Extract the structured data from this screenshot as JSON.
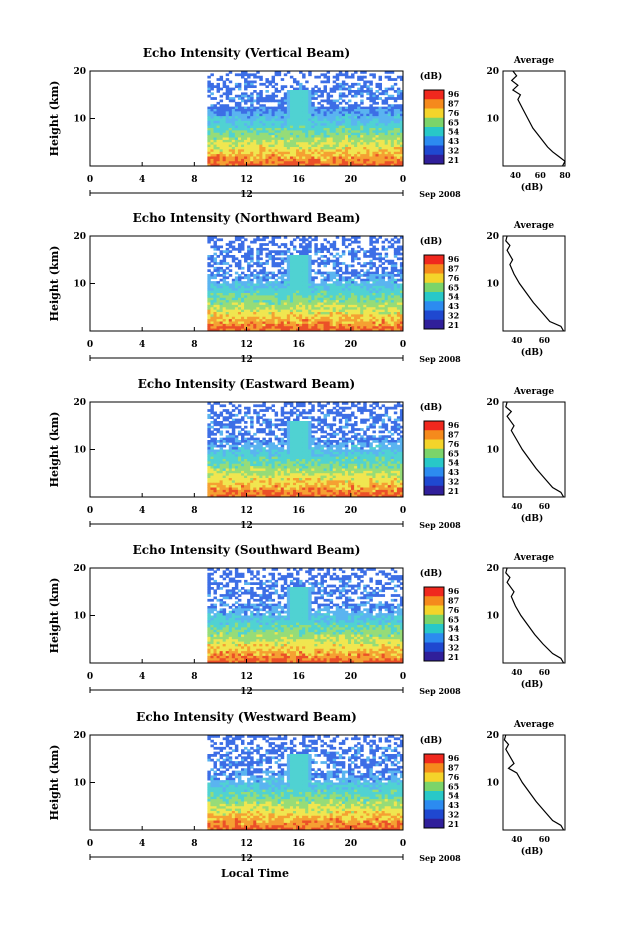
{
  "figure": {
    "x_axis_label": "Local Time",
    "date_label": "Sep 2008",
    "colorbar_label": "(dB)",
    "colorbar_ticks": [
      "96",
      "87",
      "76",
      "65",
      "54",
      "43",
      "32",
      "21"
    ],
    "colorbar_colors": [
      "#f0281e",
      "#f58a1c",
      "#f4d42a",
      "#7bd46a",
      "#28c8c8",
      "#2c8bf0",
      "#1f48d0",
      "#301f9a"
    ],
    "heatmap_colors": {
      "white": "#ffffff",
      "blue": "#3c6ee6",
      "lightblue": "#5ab4f0",
      "cyan": "#50d2d2",
      "green": "#96dc78",
      "yellow": "#f0e650",
      "orange": "#f5a032",
      "red": "#eb5028"
    },
    "avg_title": "Average",
    "avg_xlabel": "(dB)"
  },
  "chart_data": [
    {
      "type": "heatmap",
      "title": "Echo Intensity (Vertical Beam)",
      "ylabel": "Height (km)",
      "xlabel": "Local Time",
      "x_ticks": [
        "0",
        "4",
        "8",
        "12",
        "16",
        "20",
        "0"
      ],
      "x_range": [
        0,
        24
      ],
      "y_ticks": [
        "20",
        "10"
      ],
      "y_range": [
        0,
        20
      ],
      "data_start_hour": 9,
      "colorbar_range_db": [
        21,
        96
      ],
      "average_profile": {
        "x_ticks": [
          "40",
          "60",
          "80"
        ],
        "x_range": [
          30,
          80
        ],
        "y_ticks": [
          "20",
          "10"
        ],
        "points": [
          [
            38,
            20
          ],
          [
            41,
            19
          ],
          [
            37,
            18
          ],
          [
            42,
            17
          ],
          [
            38,
            16
          ],
          [
            44,
            15
          ],
          [
            42,
            14
          ],
          [
            46,
            12
          ],
          [
            50,
            10
          ],
          [
            54,
            8
          ],
          [
            57,
            7
          ],
          [
            60,
            6
          ],
          [
            63,
            5
          ],
          [
            66,
            4
          ],
          [
            70,
            3
          ],
          [
            75,
            2
          ],
          [
            80,
            1
          ],
          [
            78,
            0
          ]
        ]
      }
    },
    {
      "type": "heatmap",
      "title": "Echo Intensity (Northward Beam)",
      "ylabel": "Height (km)",
      "xlabel": "Local Time",
      "x_ticks": [
        "0",
        "4",
        "8",
        "12",
        "16",
        "20",
        "0"
      ],
      "x_range": [
        0,
        24
      ],
      "y_ticks": [
        "20",
        "10"
      ],
      "y_range": [
        0,
        20
      ],
      "data_start_hour": 9,
      "colorbar_range_db": [
        21,
        96
      ],
      "average_profile": {
        "x_ticks": [
          "40",
          "60"
        ],
        "x_range": [
          30,
          75
        ],
        "y_ticks": [
          "20",
          "10"
        ],
        "points": [
          [
            33,
            20
          ],
          [
            32,
            19
          ],
          [
            35,
            18
          ],
          [
            33,
            17
          ],
          [
            37,
            15
          ],
          [
            35,
            14
          ],
          [
            38,
            12
          ],
          [
            42,
            10
          ],
          [
            47,
            8
          ],
          [
            52,
            6
          ],
          [
            58,
            4
          ],
          [
            64,
            2
          ],
          [
            72,
            1
          ],
          [
            74,
            0
          ]
        ]
      }
    },
    {
      "type": "heatmap",
      "title": "Echo Intensity (Eastward Beam)",
      "ylabel": "Height (km)",
      "xlabel": "Local Time",
      "x_ticks": [
        "0",
        "4",
        "8",
        "12",
        "16",
        "20",
        "0"
      ],
      "x_range": [
        0,
        24
      ],
      "y_ticks": [
        "20",
        "10"
      ],
      "y_range": [
        0,
        20
      ],
      "data_start_hour": 9,
      "colorbar_range_db": [
        21,
        96
      ],
      "average_profile": {
        "x_ticks": [
          "40",
          "60"
        ],
        "x_range": [
          30,
          75
        ],
        "y_ticks": [
          "20",
          "10"
        ],
        "points": [
          [
            33,
            20
          ],
          [
            32,
            19
          ],
          [
            36,
            18
          ],
          [
            33,
            17
          ],
          [
            38,
            15
          ],
          [
            36,
            14
          ],
          [
            40,
            12
          ],
          [
            44,
            10
          ],
          [
            49,
            8
          ],
          [
            54,
            6
          ],
          [
            60,
            4
          ],
          [
            66,
            2
          ],
          [
            72,
            1
          ],
          [
            74,
            0
          ]
        ]
      }
    },
    {
      "type": "heatmap",
      "title": "Echo Intensity (Southward Beam)",
      "ylabel": "Height (km)",
      "xlabel": "Local Time",
      "x_ticks": [
        "0",
        "4",
        "8",
        "12",
        "16",
        "20",
        "0"
      ],
      "x_range": [
        0,
        24
      ],
      "y_ticks": [
        "20",
        "10"
      ],
      "y_range": [
        0,
        20
      ],
      "data_start_hour": 9,
      "colorbar_range_db": [
        21,
        96
      ],
      "average_profile": {
        "x_ticks": [
          "40",
          "60"
        ],
        "x_range": [
          30,
          75
        ],
        "y_ticks": [
          "20",
          "10"
        ],
        "points": [
          [
            33,
            20
          ],
          [
            32,
            19
          ],
          [
            35,
            18
          ],
          [
            33,
            17
          ],
          [
            38,
            15
          ],
          [
            36,
            14
          ],
          [
            39,
            12
          ],
          [
            43,
            10
          ],
          [
            48,
            8
          ],
          [
            53,
            6
          ],
          [
            59,
            4
          ],
          [
            66,
            2
          ],
          [
            72,
            1
          ],
          [
            74,
            0
          ]
        ]
      }
    },
    {
      "type": "heatmap",
      "title": "Echo Intensity (Westward Beam)",
      "ylabel": "Height (km)",
      "xlabel": "Local Time",
      "x_ticks": [
        "0",
        "4",
        "8",
        "12",
        "16",
        "20",
        "0"
      ],
      "x_range": [
        0,
        24
      ],
      "y_ticks": [
        "20",
        "10"
      ],
      "y_range": [
        0,
        20
      ],
      "data_start_hour": 9,
      "colorbar_range_db": [
        21,
        96
      ],
      "average_profile": {
        "x_ticks": [
          "40",
          "60"
        ],
        "x_range": [
          30,
          75
        ],
        "y_ticks": [
          "20",
          "10"
        ],
        "points": [
          [
            32,
            20
          ],
          [
            31,
            19
          ],
          [
            34,
            18
          ],
          [
            32,
            17
          ],
          [
            36,
            15
          ],
          [
            38,
            14
          ],
          [
            34,
            13
          ],
          [
            40,
            12
          ],
          [
            44,
            10
          ],
          [
            49,
            8
          ],
          [
            54,
            6
          ],
          [
            60,
            4
          ],
          [
            66,
            2
          ],
          [
            72,
            1
          ],
          [
            74,
            0
          ]
        ]
      }
    }
  ]
}
